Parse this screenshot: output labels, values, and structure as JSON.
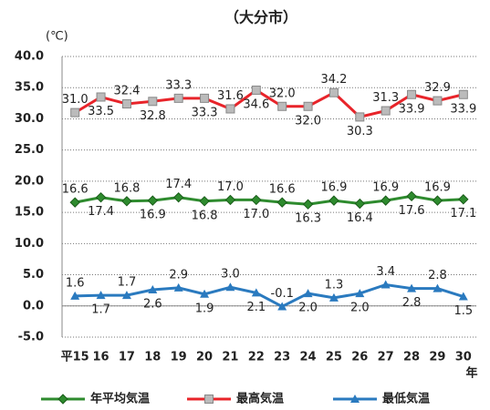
{
  "chart_data": {
    "type": "line",
    "title": "（大分市）",
    "y_label": "(℃)",
    "x_label": "年",
    "categories": [
      "平15",
      "16",
      "17",
      "18",
      "19",
      "20",
      "21",
      "22",
      "23",
      "24",
      "25",
      "26",
      "27",
      "28",
      "29",
      "30"
    ],
    "ylim": [
      -5,
      40
    ],
    "yticks": [
      {
        "value": -5,
        "label": "-5.0"
      },
      {
        "value": 0,
        "label": "0.0"
      },
      {
        "value": 5,
        "label": "5.0"
      },
      {
        "value": 10,
        "label": "10.0"
      },
      {
        "value": 15,
        "label": "15.0"
      },
      {
        "value": 20,
        "label": "20.0"
      },
      {
        "value": 25,
        "label": "25.0"
      },
      {
        "value": 30,
        "label": "30.0"
      },
      {
        "value": 35,
        "label": "35.0"
      },
      {
        "value": 40,
        "label": "40.0"
      }
    ],
    "grid": true,
    "series": [
      {
        "name": "年平均気温",
        "color": "#2e8b2e",
        "marker": "diamond",
        "values": [
          16.6,
          17.4,
          16.8,
          16.9,
          17.4,
          16.8,
          17.0,
          17.0,
          16.6,
          16.3,
          16.9,
          16.4,
          16.9,
          17.6,
          16.9,
          17.1
        ],
        "value_labels": [
          "16.6",
          "17.4",
          "16.8",
          "16.9",
          "17.4",
          "16.8",
          "17.0",
          "17.0",
          "16.6",
          "16.3",
          "16.9",
          "16.4",
          "16.9",
          "17.6",
          "16.9",
          "17.1"
        ]
      },
      {
        "name": "最高気温",
        "color": "#e8242a",
        "marker": "square",
        "values": [
          31.0,
          33.5,
          32.4,
          32.8,
          33.3,
          33.3,
          31.6,
          34.6,
          32.0,
          32.0,
          34.2,
          30.3,
          31.3,
          33.9,
          32.9,
          33.9
        ],
        "value_labels": [
          "31.0",
          "33.5",
          "32.4",
          "32.8",
          "33.3",
          "33.3",
          "31.6",
          "34.6",
          "32.0",
          "32.0",
          "34.2",
          "30.3",
          "31.3",
          "33.9",
          "32.9",
          "33.9"
        ]
      },
      {
        "name": "最低気温",
        "color": "#2a7abf",
        "marker": "triangle",
        "values": [
          1.6,
          1.7,
          1.7,
          2.6,
          2.9,
          1.9,
          3.0,
          2.1,
          -0.1,
          2.0,
          1.3,
          2.0,
          3.4,
          2.8,
          2.8,
          1.5
        ],
        "value_labels": [
          "1.6",
          "1.7",
          "1.7",
          "2.6",
          "2.9",
          "1.9",
          "3.0",
          "2.1",
          "-0.1",
          "2.0",
          "1.3",
          "2.0",
          "3.4",
          "2.8",
          "2.8",
          "1.5"
        ]
      }
    ]
  }
}
